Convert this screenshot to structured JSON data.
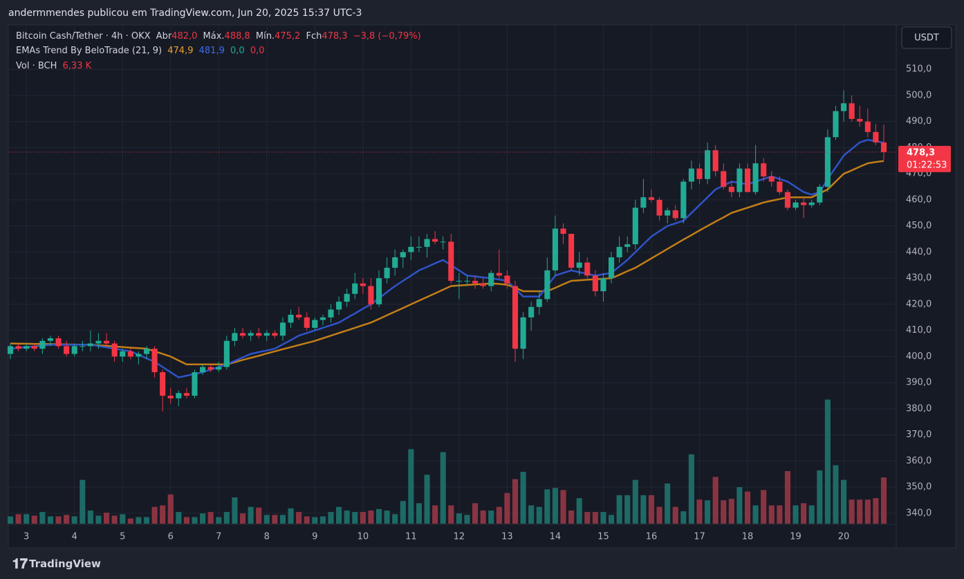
{
  "header": {
    "author_line": "andermmendes publicou em TradingView.com, Jun 20, 2025 15:37 UTC-3"
  },
  "footer": {
    "brand": "TradingView"
  },
  "chart_data": {
    "type": "candlestick",
    "symbol": "Bitcoin Cash/Tether · 4h · OKX",
    "legend": {
      "open_label": "Abr",
      "open": "482,0",
      "high_label": "Máx.",
      "high": "488,8",
      "low_label": "Mín.",
      "low": "475,2",
      "close_label": "Fch",
      "close": "478,3",
      "change": "−3,8 (−0,79%)"
    },
    "indicator": {
      "name": "EMAs Trend By BeloTrade (21, 9)",
      "values": [
        "474,9",
        "481,9",
        "0,0",
        "0,0"
      ],
      "colors": [
        "#f0a030",
        "#3d6df2",
        "#22ab94",
        "#f23645"
      ]
    },
    "volume_legend": {
      "name": "Vol · BCH",
      "value": "6,33 K"
    },
    "currency": "USDT",
    "last_price_label": "478,3",
    "countdown": "01:22:53",
    "up_color": "#22ab94",
    "down_color": "#f23645",
    "volume_up_color": "#1d6a66",
    "volume_down_color": "#8a3442",
    "categories": [
      null,
      null,
      "3",
      null,
      null,
      null,
      null,
      null,
      "4",
      null,
      null,
      null,
      null,
      null,
      "5",
      null,
      null,
      null,
      null,
      null,
      "6",
      null,
      null,
      null,
      null,
      null,
      "7",
      null,
      null,
      null,
      null,
      null,
      "8",
      null,
      null,
      null,
      null,
      null,
      "9",
      null,
      null,
      null,
      null,
      null,
      "10",
      null,
      null,
      null,
      null,
      null,
      "11",
      null,
      null,
      null,
      null,
      null,
      "12",
      null,
      null,
      null,
      null,
      null,
      "13",
      null,
      null,
      null,
      null,
      null,
      "14",
      null,
      null,
      null,
      null,
      null,
      "15",
      null,
      null,
      null,
      null,
      null,
      "16",
      null,
      null,
      null,
      null,
      null,
      "17",
      null,
      null,
      null,
      null,
      null,
      "18",
      null,
      null,
      null,
      null,
      null,
      "19",
      null,
      null,
      null,
      null,
      null,
      "20",
      null,
      null,
      null,
      null,
      null
    ],
    "open": [
      401,
      404,
      403,
      404,
      403,
      406,
      407,
      404,
      401,
      404,
      404,
      405,
      406,
      405,
      400,
      402,
      400,
      401,
      403,
      394,
      385,
      384,
      386,
      385,
      394,
      396,
      395,
      396,
      406,
      409,
      408,
      409,
      408,
      409,
      408,
      413,
      416,
      415,
      411,
      414,
      415,
      418,
      421,
      424,
      428,
      427,
      420,
      430,
      434,
      438,
      440,
      442,
      442,
      445,
      444,
      444,
      429,
      429,
      429,
      428,
      427,
      432,
      431,
      427,
      403,
      415,
      419,
      422,
      433,
      449,
      447,
      434,
      436,
      431,
      425,
      430,
      438,
      442,
      443,
      457,
      461,
      460,
      454,
      456,
      453,
      467,
      472,
      468,
      479,
      471,
      465,
      463,
      472,
      463,
      474,
      469,
      467,
      463,
      457,
      459,
      458,
      459,
      465,
      484,
      494,
      497,
      491,
      490,
      486,
      482
    ],
    "high": [
      405,
      405,
      405,
      405,
      407,
      408,
      408,
      406,
      405,
      406,
      410,
      409,
      409,
      406,
      403,
      403,
      402,
      404,
      404,
      395,
      388,
      387,
      388,
      395,
      397,
      397,
      398,
      408,
      411,
      411,
      410,
      411,
      410,
      410,
      415,
      418,
      419,
      417,
      415,
      416,
      420,
      423,
      426,
      432,
      430,
      430,
      433,
      438,
      441,
      441,
      446,
      446,
      447,
      448,
      446,
      447,
      432,
      431,
      431,
      430,
      433,
      441,
      433,
      429,
      417,
      421,
      425,
      438,
      454,
      451,
      447,
      440,
      438,
      433,
      432,
      440,
      446,
      446,
      460,
      468,
      464,
      461,
      457,
      458,
      468,
      475,
      474,
      482,
      481,
      474,
      467,
      474,
      474,
      481,
      476,
      471,
      469,
      464,
      460,
      461,
      460,
      466,
      487,
      496,
      502,
      500,
      496,
      495,
      489,
      488.8
    ],
    "low": [
      399,
      402,
      402,
      402,
      401,
      404,
      403,
      400,
      400,
      402,
      402,
      403,
      404,
      398,
      398,
      399,
      397,
      399,
      392,
      379,
      382,
      381,
      384,
      384,
      393,
      394,
      394,
      395,
      404,
      407,
      406,
      407,
      406,
      407,
      406,
      411,
      414,
      410,
      410,
      412,
      413,
      416,
      419,
      422,
      424,
      418,
      419,
      428,
      431,
      434,
      437,
      440,
      438,
      443,
      441,
      428,
      422,
      427,
      426,
      426,
      425,
      430,
      426,
      398,
      399,
      410,
      416,
      421,
      431,
      443,
      433,
      431,
      430,
      423,
      421,
      428,
      436,
      440,
      441,
      455,
      459,
      452,
      451,
      452,
      451,
      464,
      466,
      466,
      469,
      464,
      461,
      461,
      463,
      462,
      467,
      465,
      462,
      456,
      456,
      453,
      457,
      458,
      463,
      483,
      490,
      490,
      488,
      484,
      481,
      475.2
    ],
    "close": [
      404,
      403,
      404,
      403,
      406,
      407,
      404,
      401,
      404,
      404,
      405,
      406,
      405,
      400,
      402,
      400,
      401,
      403,
      394,
      385,
      384,
      386,
      385,
      394,
      396,
      395,
      396,
      406,
      409,
      408,
      409,
      408,
      409,
      408,
      413,
      416,
      415,
      411,
      414,
      415,
      418,
      421,
      424,
      428,
      427,
      420,
      430,
      434,
      438,
      440,
      442,
      442,
      445,
      444,
      444,
      429,
      429,
      429,
      428,
      427,
      432,
      431,
      428,
      403,
      415,
      419,
      422,
      433,
      449,
      447,
      434,
      436,
      431,
      425,
      430,
      438,
      442,
      443,
      457,
      461,
      460,
      454,
      456,
      453,
      467,
      472,
      468,
      479,
      471,
      465,
      463,
      472,
      463,
      474,
      469,
      467,
      463,
      457,
      459,
      458,
      459,
      465,
      484,
      494,
      497,
      491,
      490,
      486,
      482,
      478.3
    ],
    "volume": [
      1.0,
      1.3,
      1.3,
      1.1,
      1.6,
      1.0,
      1.0,
      1.2,
      1.0,
      6.0,
      1.8,
      1.1,
      1.5,
      1.1,
      1.3,
      0.7,
      0.9,
      0.9,
      2.3,
      2.5,
      4.0,
      1.6,
      0.9,
      0.9,
      1.4,
      1.6,
      0.9,
      1.6,
      3.6,
      1.4,
      2.3,
      2.2,
      1.2,
      1.2,
      1.2,
      2.1,
      1.6,
      1.0,
      0.9,
      1.0,
      1.6,
      2.3,
      1.8,
      1.6,
      1.6,
      1.8,
      2.0,
      1.8,
      1.3,
      3.1,
      10.2,
      2.8,
      6.7,
      2.5,
      9.8,
      2.5,
      1.4,
      1.2,
      2.8,
      1.8,
      1.8,
      2.3,
      4.2,
      6.1,
      7.1,
      2.5,
      2.3,
      4.7,
      4.9,
      4.6,
      1.8,
      3.5,
      1.6,
      1.6,
      1.6,
      1.2,
      3.9,
      3.9,
      6.0,
      3.9,
      3.9,
      2.3,
      5.5,
      2.3,
      1.7,
      9.5,
      3.3,
      3.2,
      6.4,
      3.2,
      3.4,
      5.0,
      4.4,
      2.5,
      4.6,
      2.5,
      2.5,
      7.2,
      2.5,
      2.8,
      2.5,
      7.3,
      17.0,
      8.0,
      6.0,
      3.3,
      3.3,
      3.3,
      3.5,
      6.33
    ],
    "ema_slow": {
      "color": "#c47f17",
      "values": [
        405,
        404.95,
        404.9,
        404.85,
        404.8,
        404.75,
        404.7,
        404.65,
        404.6,
        404.55,
        404.5,
        404.3,
        404.1,
        403.9,
        403.6,
        403.4,
        403.2,
        403,
        402,
        401,
        400,
        398.5,
        397,
        397,
        397,
        397,
        397,
        397,
        397.8,
        398.7,
        399.5,
        400.3,
        401.2,
        402,
        402.8,
        403.6,
        404.4,
        405.2,
        406,
        407,
        408,
        409,
        410,
        411,
        412,
        413,
        414.4,
        415.8,
        417.2,
        418.6,
        420,
        421.4,
        422.8,
        424.2,
        425.6,
        427,
        427.2,
        427.4,
        427.6,
        427.8,
        428,
        427.8,
        427.5,
        426.3,
        425,
        425,
        425,
        425,
        426.3,
        427.7,
        429,
        429.2,
        429.4,
        429.6,
        429.8,
        430,
        431.3,
        432.7,
        434,
        435.8,
        437.6,
        439.4,
        441.2,
        443,
        444.8,
        446.5,
        448.3,
        450,
        451.7,
        453.3,
        455,
        456,
        457,
        458,
        459,
        459.7,
        460.3,
        461,
        461,
        461,
        461,
        462.5,
        464,
        467,
        470,
        471.3,
        472.7,
        474,
        474.5,
        474.9
      ]
    },
    "ema_fast": {
      "color": "#2f54c9",
      "values": [
        403,
        403.3,
        403.6,
        403.9,
        404.2,
        404.5,
        404.5,
        404.5,
        404.5,
        404.5,
        404.5,
        404,
        403.5,
        403,
        402.5,
        402,
        400.7,
        399.3,
        398,
        396,
        394,
        392,
        392.7,
        393.3,
        394,
        395,
        396,
        397,
        398.3,
        399.7,
        401,
        401.7,
        402.3,
        403,
        404.7,
        406.3,
        408,
        409,
        410,
        411,
        412,
        413,
        414.8,
        416.5,
        418.3,
        420,
        422.3,
        424.7,
        427,
        429,
        431,
        433,
        434.3,
        435.7,
        437,
        435,
        433,
        431,
        430.7,
        430.3,
        430,
        429.5,
        429,
        426,
        423,
        423,
        423,
        427,
        431,
        432,
        433,
        432.3,
        431.7,
        431,
        431.5,
        432,
        434.5,
        437,
        440,
        443,
        446,
        448,
        450,
        451,
        452,
        455,
        458,
        461,
        464,
        465.5,
        467,
        466.5,
        466,
        467,
        468,
        469,
        468,
        467,
        465,
        463,
        462,
        463,
        468,
        472.5,
        477,
        479.5,
        482,
        483,
        482.5,
        481.9
      ]
    },
    "ylim": [
      336,
      518
    ],
    "yticks": [
      {
        "value": 340,
        "label": "340,0"
      },
      {
        "value": 350,
        "label": "350,0"
      },
      {
        "value": 360,
        "label": "360,0"
      },
      {
        "value": 370,
        "label": "370,0"
      },
      {
        "value": 380,
        "label": "380,0"
      },
      {
        "value": 390,
        "label": "390,0"
      },
      {
        "value": 400,
        "label": "400,0"
      },
      {
        "value": 410,
        "label": "410,0"
      },
      {
        "value": 420,
        "label": "420,0"
      },
      {
        "value": 430,
        "label": "430,0"
      },
      {
        "value": 440,
        "label": "440,0"
      },
      {
        "value": 450,
        "label": "450,0"
      },
      {
        "value": 460,
        "label": "460,0"
      },
      {
        "value": 470,
        "label": "470,0"
      },
      {
        "value": 480,
        "label": "480,0"
      },
      {
        "value": 490,
        "label": "490,0"
      },
      {
        "value": 500,
        "label": "500,0"
      },
      {
        "value": 510,
        "label": "510,0"
      }
    ],
    "volume_lim": [
      0,
      18
    ],
    "grid": true
  }
}
